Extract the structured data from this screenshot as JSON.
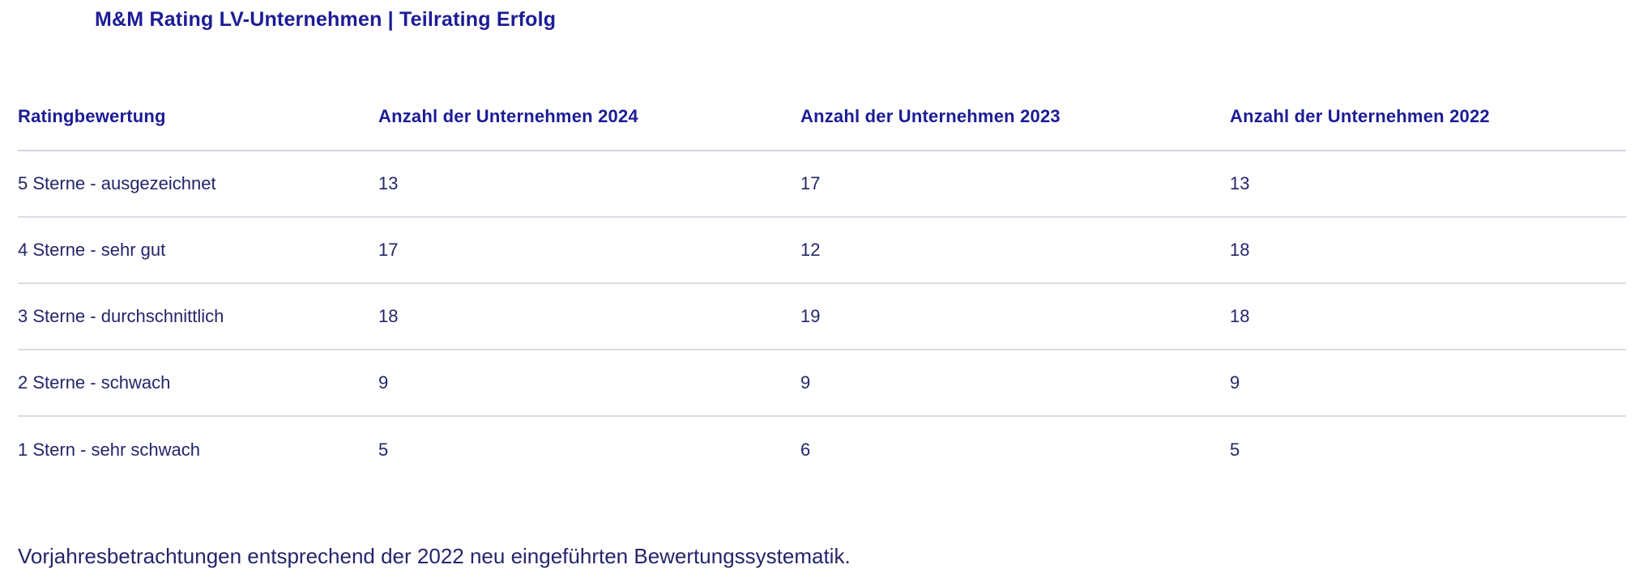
{
  "chart_data": {
    "type": "table",
    "title": "M&M Rating LV-Unternehmen | Teilrating Erfolg",
    "columns": [
      "Ratingbewertung",
      "Anzahl der Unternehmen 2024",
      "Anzahl der Unternehmen 2023",
      "Anzahl der Unternehmen 2022"
    ],
    "rows": [
      [
        "5 Sterne - ausgezeichnet",
        "13",
        "17",
        "13"
      ],
      [
        "4 Sterne - sehr gut",
        "17",
        "12",
        "18"
      ],
      [
        "3 Sterne - durchschnittlich",
        "18",
        "19",
        "18"
      ],
      [
        "2 Sterne - schwach",
        "9",
        "9",
        "9"
      ],
      [
        "1 Stern - sehr schwach",
        "5",
        "6",
        "5"
      ]
    ],
    "footnote": "Vorjahresbetrachtungen entsprechend der 2022 neu eingeführten Bewertungssystematik.",
    "layout": {
      "grid": "horizontal-row-dividers-only",
      "legend": "none"
    }
  },
  "colors": {
    "heading_text": "#1c1c96",
    "body_text": "#25256b",
    "divider": "#d6dae1",
    "background": "#ffffff"
  }
}
